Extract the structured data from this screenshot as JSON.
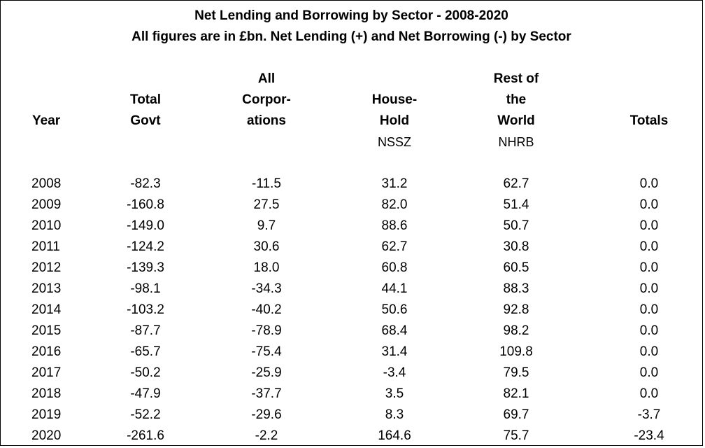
{
  "title": "Net Lending and Borrowing by Sector - 2008-2020",
  "subtitle": "All figures are in £bn.   Net Lending (+) and Net Borrowing (-) by Sector",
  "headers": {
    "year": [
      "",
      "",
      "Year"
    ],
    "govt": [
      "",
      "Total",
      "Govt"
    ],
    "corp": [
      "All",
      "Corpor-",
      "ations"
    ],
    "house": [
      "",
      "House-",
      "Hold"
    ],
    "row": [
      "Rest of",
      "the",
      "World"
    ],
    "totals": [
      "",
      "",
      "Totals"
    ]
  },
  "series_codes": {
    "house": "NSSZ",
    "row": "NHRB"
  },
  "rows": [
    [
      "2008",
      "-82.3",
      "-11.5",
      "31.2",
      "62.7",
      "0.0"
    ],
    [
      "2009",
      "-160.8",
      "27.5",
      "82.0",
      "51.4",
      "0.0"
    ],
    [
      "2010",
      "-149.0",
      "9.7",
      "88.6",
      "50.7",
      "0.0"
    ],
    [
      "2011",
      "-124.2",
      "30.6",
      "62.7",
      "30.8",
      "0.0"
    ],
    [
      "2012",
      "-139.3",
      "18.0",
      "60.8",
      "60.5",
      "0.0"
    ],
    [
      "2013",
      "-98.1",
      "-34.3",
      "44.1",
      "88.3",
      "0.0"
    ],
    [
      "2014",
      "-103.2",
      "-40.2",
      "50.6",
      "92.8",
      "0.0"
    ],
    [
      "2015",
      "-87.7",
      "-78.9",
      "68.4",
      "98.2",
      "0.0"
    ],
    [
      "2016",
      "-65.7",
      "-75.4",
      "31.4",
      "109.8",
      "0.0"
    ],
    [
      "2017",
      "-50.2",
      "-25.9",
      "-3.4",
      "79.5",
      "0.0"
    ],
    [
      "2018",
      "-47.9",
      "-37.7",
      "3.5",
      "82.1",
      "0.0"
    ],
    [
      "2019",
      "-52.2",
      "-29.6",
      "8.3",
      "69.7",
      "-3.7"
    ],
    [
      "2020",
      "-261.6",
      "-2.2",
      "164.6",
      "75.7",
      "-23.4"
    ]
  ]
}
